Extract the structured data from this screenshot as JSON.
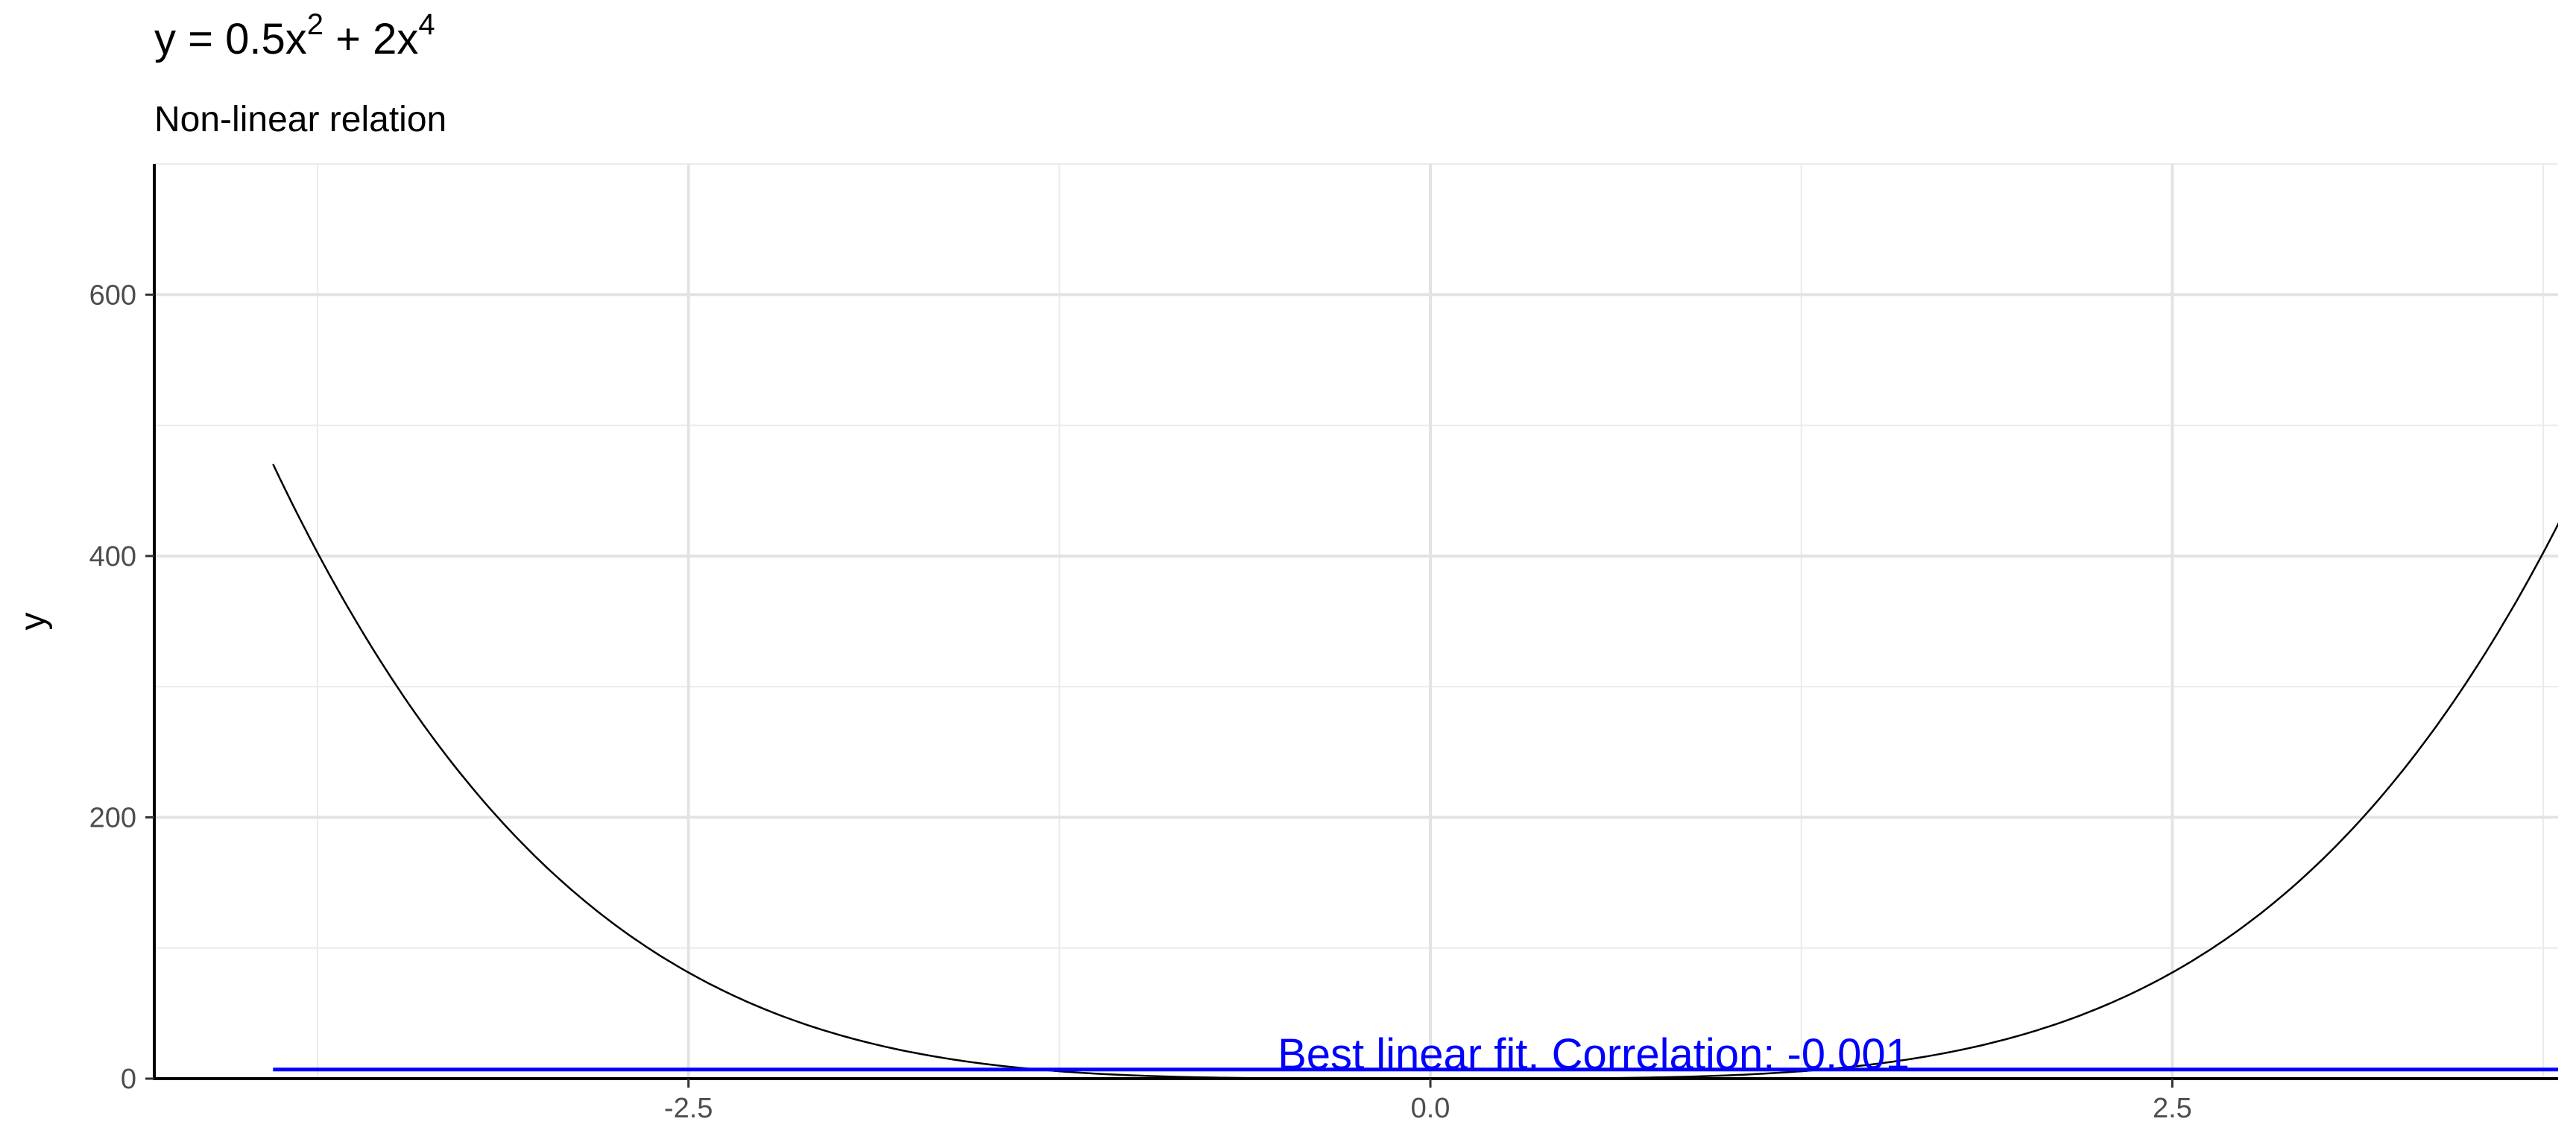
{
  "chart_data": {
    "type": "line",
    "title": {
      "prefix": "y = 0.5x",
      "exp1": "2",
      "middle": " + 2x",
      "exp2": "4"
    },
    "subtitle": "Non-linear relation",
    "xlabel": "",
    "ylabel": "y",
    "xlim": [
      -4.3,
      3.8
    ],
    "ylim": [
      0,
      700
    ],
    "x_ticks": [
      -2.5,
      0.0,
      2.5
    ],
    "x_tick_labels": [
      "-2.5",
      "0.0",
      "2.5"
    ],
    "y_ticks": [
      0,
      200,
      400,
      600
    ],
    "y_tick_labels": [
      "0",
      "200",
      "400",
      "600"
    ],
    "grid": true,
    "series": [
      {
        "color": "#000000",
        "function": "0.5*x^2 + 2*x^4",
        "x_range": [
          -3.9,
          4.5
        ]
      },
      {
        "color": "#0000ff",
        "values": [
          {
            "x": -3.9,
            "y": 7
          },
          {
            "x": 4.5,
            "y": 7
          }
        ]
      }
    ],
    "annotations": [
      {
        "text": "Best linear fit. Correlation: -0.001",
        "x": 0.55,
        "y": 12,
        "color": "#0000ff"
      }
    ]
  }
}
